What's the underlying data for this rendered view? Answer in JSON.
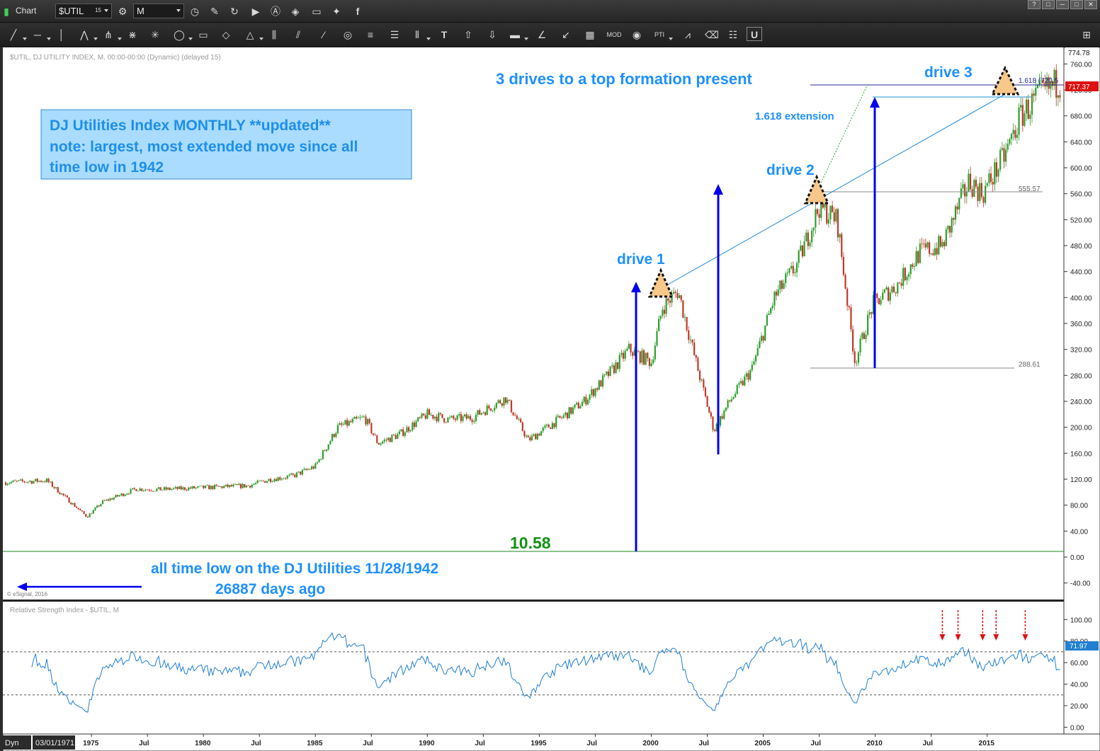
{
  "app": {
    "window_label": "Chart",
    "symbol": "$UTIL",
    "symbol_badge": "15",
    "interval": "M",
    "win_buttons": [
      "?",
      "□",
      "─",
      "□",
      "✕"
    ]
  },
  "chart_header": "$UTIL, DJ UTILITY INDEX, M, 00:00-00:00 (Dynamic) (delayed 15)",
  "copyright": "© eSignal, 2016",
  "annotations": {
    "headline": "3 drives to a top formation present",
    "box_lines": [
      "DJ Utilities Index MONTHLY **updated**",
      "note: largest, most extended move since all",
      "time low in 1942"
    ],
    "drive1": "drive 1",
    "drive2": "drive 2",
    "drive3": "drive 3",
    "extension": "1.618 extension",
    "fib_label": "1.618 (720.5",
    "low_value": "10.58",
    "atl_line1": "all time low on the DJ Utilities 11/28/1942",
    "atl_line2": "26887 days ago",
    "level_555": "555.57",
    "level_288": "288.61"
  },
  "colors": {
    "up": "#2ca02c",
    "down": "#c0392b",
    "annotation_blue": "#1e90ff",
    "arrow_blue": "#0000ee",
    "green_text": "#129112",
    "rsi_line": "#1f7fd1",
    "box_fill": "#aadcff"
  },
  "bottom_bar": {
    "mode": "Dyn",
    "start_date": "03/01/1971"
  },
  "chart_data": [
    {
      "type": "candlestick",
      "title": "$UTIL, DJ UTILITY INDEX, M",
      "ylim": [
        -60,
        780
      ],
      "y_ticks": [
        -40,
        0,
        40,
        80,
        120,
        160,
        200,
        240,
        280,
        320,
        360,
        400,
        440,
        480,
        520,
        560,
        600,
        640,
        680,
        720,
        760
      ],
      "y_tick_labels": [
        "-40.00",
        "0.00",
        "40.00",
        "80.00",
        "120.00",
        "160.00",
        "200.00",
        "240.00",
        "280.00",
        "320.00",
        "360.00",
        "400.00",
        "440.00",
        "480.00",
        "520.00",
        "560.00",
        "600.00",
        "640.00",
        "680.00",
        "720.00",
        "760.00"
      ],
      "last_price": "717.37",
      "high_label": "774.78",
      "x_start": 1971.17,
      "x_end": 2018.3,
      "x_ticks": [
        {
          "x": 1975.0,
          "label": "1975"
        },
        {
          "x": 1977.5,
          "label": "Jul"
        },
        {
          "x": 1980.0,
          "label": "1980"
        },
        {
          "x": 1982.5,
          "label": "Jul"
        },
        {
          "x": 1985.0,
          "label": "1985"
        },
        {
          "x": 1987.5,
          "label": "Jul"
        },
        {
          "x": 1990.0,
          "label": "1990"
        },
        {
          "x": 1992.5,
          "label": "Jul"
        },
        {
          "x": 1995.0,
          "label": "1995"
        },
        {
          "x": 1997.5,
          "label": "Jul"
        },
        {
          "x": 2000.0,
          "label": "2000"
        },
        {
          "x": 2002.5,
          "label": "Jul"
        },
        {
          "x": 2005.0,
          "label": "2005"
        },
        {
          "x": 2007.5,
          "label": "Jul"
        },
        {
          "x": 2010.0,
          "label": "2010"
        },
        {
          "x": 2012.5,
          "label": "Jul"
        },
        {
          "x": 2015.0,
          "label": "2015"
        }
      ],
      "series_waypoints": [
        [
          1971.17,
          115
        ],
        [
          1973.0,
          118
        ],
        [
          1974.8,
          62
        ],
        [
          1975.5,
          85
        ],
        [
          1977.0,
          105
        ],
        [
          1978.0,
          104
        ],
        [
          1980.0,
          107
        ],
        [
          1982.0,
          110
        ],
        [
          1983.0,
          120
        ],
        [
          1984.0,
          125
        ],
        [
          1985.0,
          140
        ],
        [
          1986.0,
          200
        ],
        [
          1987.2,
          215
        ],
        [
          1987.8,
          175
        ],
        [
          1988.8,
          190
        ],
        [
          1990.0,
          220
        ],
        [
          1991.0,
          212
        ],
        [
          1992.0,
          215
        ],
        [
          1993.5,
          245
        ],
        [
          1994.5,
          180
        ],
        [
          1996.0,
          215
        ],
        [
          1997.0,
          240
        ],
        [
          1998.3,
          290
        ],
        [
          1999.0,
          320
        ],
        [
          2000.0,
          300
        ],
        [
          2000.5,
          385
        ],
        [
          2001.2,
          410
        ],
        [
          2002.0,
          300
        ],
        [
          2002.8,
          195
        ],
        [
          2003.5,
          240
        ],
        [
          2004.5,
          290
        ],
        [
          2005.5,
          400
        ],
        [
          2006.5,
          450
        ],
        [
          2007.5,
          540
        ],
        [
          2008.3,
          520
        ],
        [
          2009.1,
          300
        ],
        [
          2009.9,
          390
        ],
        [
          2011.0,
          420
        ],
        [
          2012.0,
          470
        ],
        [
          2013.0,
          480
        ],
        [
          2014.2,
          580
        ],
        [
          2014.8,
          560
        ],
        [
          2015.8,
          620
        ],
        [
          2016.5,
          680
        ],
        [
          2017.3,
          710
        ],
        [
          2018.3,
          735
        ]
      ],
      "rsi": {
        "title": "Relative Strength Index - $UTIL, M",
        "ylim": [
          -5,
          112
        ],
        "y_ticks": [
          0,
          20,
          40,
          60,
          80,
          100
        ],
        "y_tick_labels": [
          "0.00",
          "20.00",
          "40.00",
          "60.00",
          "80.00",
          "100.00"
        ],
        "overbought": 70,
        "oversold": 30,
        "last_value": "71.97"
      }
    }
  ]
}
